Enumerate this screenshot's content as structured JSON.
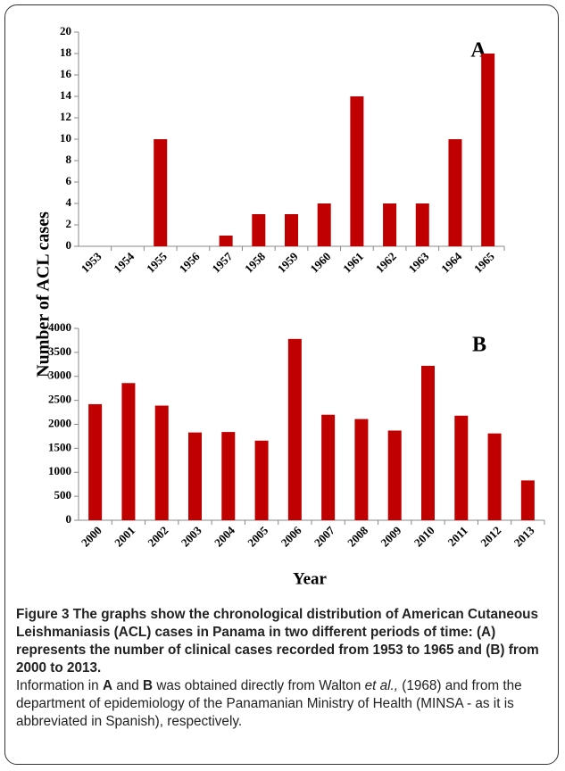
{
  "chart_data": [
    {
      "type": "bar",
      "annotation": "A",
      "color": "#c00000",
      "categories": [
        "1953",
        "1954",
        "1955",
        "1956",
        "1957",
        "1958",
        "1959",
        "1960",
        "1961",
        "1962",
        "1963",
        "1964",
        "1965"
      ],
      "values": [
        0,
        0,
        10,
        0,
        1,
        3,
        3,
        4,
        14,
        4,
        4,
        10,
        18
      ],
      "ylim": [
        0,
        20
      ],
      "yticks": [
        0,
        2,
        4,
        6,
        8,
        10,
        12,
        14,
        16,
        18,
        20
      ]
    },
    {
      "type": "bar",
      "annotation": "B",
      "color": "#c00000",
      "categories": [
        "2000",
        "2001",
        "2002",
        "2003",
        "2004",
        "2005",
        "2006",
        "2007",
        "2008",
        "2009",
        "2010",
        "2011",
        "2012",
        "2013"
      ],
      "values": [
        2420,
        2860,
        2390,
        1830,
        1840,
        1660,
        3780,
        2200,
        2110,
        1870,
        3220,
        2180,
        1810,
        830
      ],
      "ylim": [
        0,
        4000
      ],
      "yticks": [
        0,
        500,
        1000,
        1500,
        2000,
        2500,
        3000,
        3500,
        4000
      ]
    }
  ],
  "figure": {
    "y_label": "Number of ACL cases",
    "x_label": "Year",
    "caption_title": "Figure 3 The graphs show the chronological distribution of American Cutaneous Leishmaniasis (ACL) cases in Panama in two different periods of time: (A) represents the number of clinical cases recorded from 1953 to 1965 and (B) from 2000 to 2013.",
    "caption_body": [
      "Information in ",
      "A",
      " and ",
      "B",
      " was obtained directly from Walton ",
      "et al.,",
      " (1968) and from the department of epidemiology of the Panamanian Ministry of Health (MINSA - as it is abbreviated in Spanish), respectively."
    ]
  }
}
